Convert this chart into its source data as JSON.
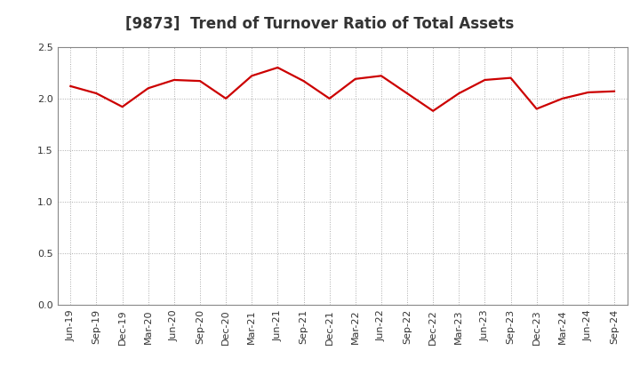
{
  "title": "[9873]  Trend of Turnover Ratio of Total Assets",
  "x_labels": [
    "Jun-19",
    "Sep-19",
    "Dec-19",
    "Mar-20",
    "Jun-20",
    "Sep-20",
    "Dec-20",
    "Mar-21",
    "Jun-21",
    "Sep-21",
    "Dec-21",
    "Mar-22",
    "Jun-22",
    "Sep-22",
    "Dec-22",
    "Mar-23",
    "Jun-23",
    "Sep-23",
    "Dec-23",
    "Mar-24",
    "Jun-24",
    "Sep-24"
  ],
  "y_values": [
    2.12,
    2.05,
    1.92,
    2.1,
    2.18,
    2.17,
    2.0,
    2.22,
    2.3,
    2.17,
    2.0,
    2.19,
    2.22,
    2.05,
    1.88,
    2.05,
    2.18,
    2.2,
    1.9,
    2.0,
    2.06,
    2.07
  ],
  "ylim": [
    0.0,
    2.5
  ],
  "yticks": [
    0.0,
    0.5,
    1.0,
    1.5,
    2.0,
    2.5
  ],
  "line_color": "#cc0000",
  "line_width": 1.6,
  "background_color": "#ffffff",
  "grid_color": "#aaaaaa",
  "title_fontsize": 12,
  "title_color": "#333333",
  "tick_fontsize": 8,
  "tick_color": "#333333"
}
